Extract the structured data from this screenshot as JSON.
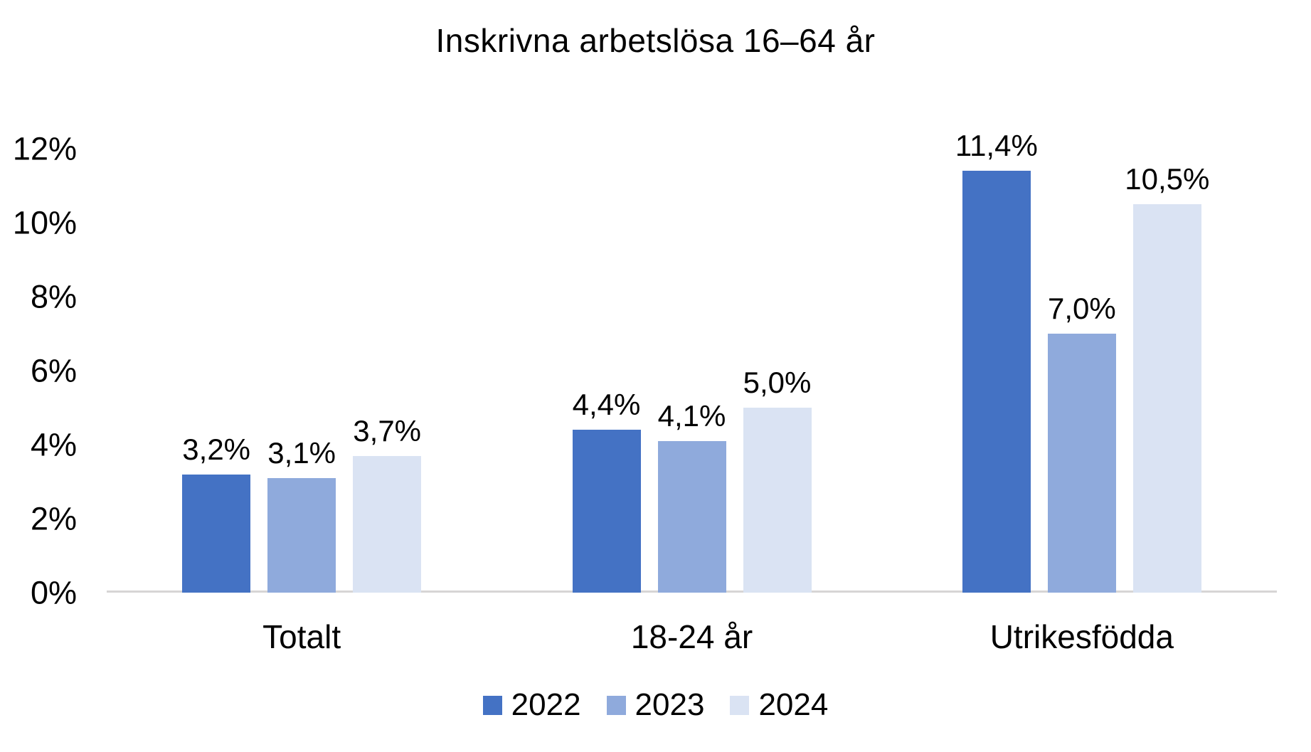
{
  "chart_data": {
    "type": "bar",
    "title": "Inskrivna arbetslösa 16–64 år",
    "categories": [
      "Totalt",
      "18-24 år",
      "Utrikesfödda"
    ],
    "series": [
      {
        "name": "2022",
        "color": "#4472C4",
        "values": [
          3.2,
          4.4,
          11.4
        ],
        "value_labels": [
          "3,2%",
          "4,4%",
          "11,4%"
        ]
      },
      {
        "name": "2023",
        "color": "#8FAADC",
        "values": [
          3.1,
          4.1,
          7.0
        ],
        "value_labels": [
          "3,1%",
          "4,1%",
          "7,0%"
        ]
      },
      {
        "name": "2024",
        "color": "#DAE3F3",
        "values": [
          3.7,
          5.0,
          10.5
        ],
        "value_labels": [
          "3,7%",
          "5,0%",
          "10,5%"
        ]
      }
    ],
    "y_axis": {
      "min": 0,
      "max": 12,
      "step": 2,
      "tick_labels": [
        "0%",
        "2%",
        "4%",
        "6%",
        "8%",
        "10%",
        "12%"
      ]
    },
    "legend": {
      "position": "bottom",
      "entries": [
        "2022",
        "2023",
        "2024"
      ]
    },
    "grid": false,
    "axis_line_color": "#D7D5D5",
    "text_color": "#000000",
    "background_color": "#FFFFFF"
  }
}
